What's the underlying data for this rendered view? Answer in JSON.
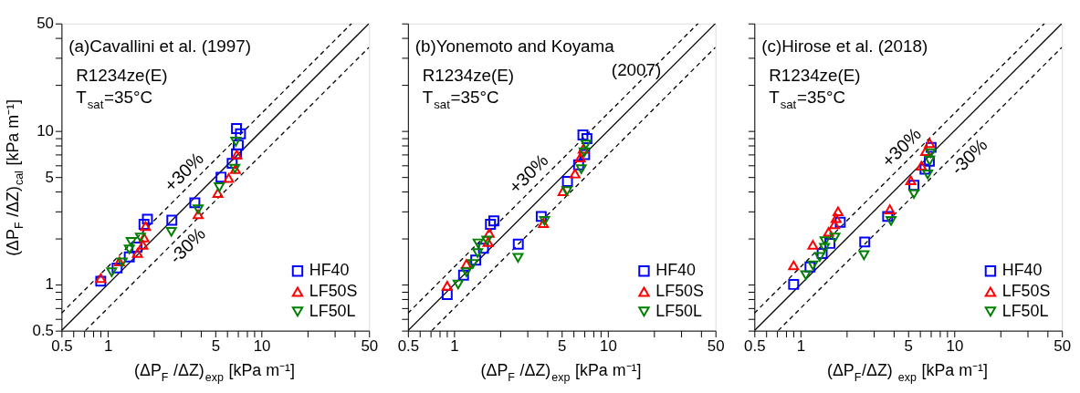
{
  "chart_data": [
    {
      "type": "scatter",
      "title": "(a)Cavallini et al. (1997)",
      "xlabel": "(ΔP$_{F}$ /ΔZ)$_{exp}$ [kPa m⁻¹]",
      "ylabel": "(ΔP$_{F}$ /ΔZ)$_{cal}$ [kPa m⁻¹]",
      "annotations": [
        "R1234ze(E)",
        "T$_{sat}$=35°C",
        {
          "text": "+30%",
          "x": 3.6,
          "y": 4.68
        },
        {
          "text": "-30%",
          "x": 2.9,
          "y": 2.03
        }
      ],
      "xlim": [
        0.5,
        50
      ],
      "ylim": [
        0.5,
        50
      ],
      "xticks": [
        0.5,
        {
          "value": 0.6,
          "label": null
        },
        {
          "value": 0.7,
          "label": null
        },
        {
          "value": 0.8,
          "label": null
        },
        {
          "value": 0.9,
          "label": null
        },
        1,
        {
          "value": 2,
          "label": null
        },
        {
          "value": 3,
          "label": null
        },
        {
          "value": 4,
          "label": null
        },
        5,
        {
          "value": 6,
          "label": null
        },
        {
          "value": 7,
          "label": null
        },
        {
          "value": 8,
          "label": null
        },
        {
          "value": 9,
          "label": null
        },
        10,
        {
          "value": 20,
          "label": null
        },
        {
          "value": 30,
          "label": null
        },
        {
          "value": 40,
          "label": null
        },
        50
      ],
      "yticks": [
        0.5,
        {
          "value": 0.6,
          "label": null
        },
        {
          "value": 0.7,
          "label": null
        },
        {
          "value": 0.8,
          "label": null
        },
        {
          "value": 0.9,
          "label": null
        },
        1,
        {
          "value": 2,
          "label": null
        },
        {
          "value": 3,
          "label": null
        },
        {
          "value": 4,
          "label": null
        },
        5,
        {
          "value": 6,
          "label": null
        },
        {
          "value": 7,
          "label": null
        },
        {
          "value": 8,
          "label": null
        },
        {
          "value": 9,
          "label": null
        },
        10,
        {
          "value": 20,
          "label": null
        },
        {
          "value": 30,
          "label": null
        },
        {
          "value": 40,
          "label": null
        },
        50
      ],
      "log": "xy",
      "grid": false,
      "legend": "bottom right",
      "series": [
        {
          "type": "line",
          "color": "#000000",
          "line_style": "solid",
          "x": [
            0.5,
            50
          ],
          "values": [
            0.5,
            50
          ]
        },
        {
          "type": "line",
          "color": "#000000",
          "line_style": "dashed",
          "x": [
            0.5,
            38.5
          ],
          "values": [
            0.65,
            50
          ]
        },
        {
          "type": "line",
          "color": "#000000",
          "line_style": "dashed",
          "x": [
            0.714,
            50
          ],
          "values": [
            0.5,
            35
          ]
        },
        {
          "name": "HF40",
          "color": "#0000ff",
          "marker": "square",
          "x": [
            0.9,
            1.15,
            1.38,
            1.55,
            1.72,
            1.81,
            2.61,
            3.68,
            5.45,
            6.44,
            6.87,
            7.05,
            6.87,
            7.29
          ],
          "values": [
            1.05,
            1.28,
            1.51,
            1.75,
            2.46,
            2.66,
            2.62,
            3.4,
            4.99,
            6.14,
            7.09,
            8.08,
            10.35,
            9.57
          ]
        },
        {
          "name": "LF50S",
          "color": "#ff0000",
          "marker": "triangle",
          "x": [
            0.9,
            1.19,
            1.56,
            1.69,
            1.72,
            1.76,
            3.87,
            5.2,
            6.11,
            6.76,
            6.9
          ],
          "values": [
            1.1,
            1.41,
            1.6,
            1.81,
            2.02,
            2.4,
            2.86,
            3.94,
            4.93,
            5.63,
            7.0
          ]
        },
        {
          "name": "LF50L",
          "color": "#008000",
          "marker": "triangle-down",
          "x": [
            1.06,
            1.24,
            1.38,
            1.42,
            1.63,
            2.59,
            3.87,
            5.31,
            6.7,
            6.8
          ],
          "values": [
            1.2,
            1.39,
            1.69,
            1.89,
            2.02,
            2.2,
            3.08,
            4.29,
            5.67,
            8.5
          ]
        }
      ]
    },
    {
      "type": "scatter",
      "title": "(b)Yonemoto and Koyama\n(2007)",
      "xlabel": "(ΔP$_{F}$ /ΔZ)$_{exp}$ [kPa m⁻¹]",
      "annotations": [
        "R1234ze(E)",
        "T$_{sat}$=35°C",
        {
          "text": "+30%",
          "x": 3.5,
          "y": 4.55
        }
      ],
      "xlim": [
        0.5,
        50
      ],
      "ylim": [
        0.5,
        50
      ],
      "xticks": [
        0.5,
        {
          "value": 0.6,
          "label": null
        },
        {
          "value": 0.7,
          "label": null
        },
        {
          "value": 0.8,
          "label": null
        },
        {
          "value": 0.9,
          "label": null
        },
        1,
        {
          "value": 2,
          "label": null
        },
        {
          "value": 3,
          "label": null
        },
        {
          "value": 4,
          "label": null
        },
        5,
        {
          "value": 6,
          "label": null
        },
        {
          "value": 7,
          "label": null
        },
        {
          "value": 8,
          "label": null
        },
        {
          "value": 9,
          "label": null
        },
        10,
        {
          "value": 20,
          "label": null
        },
        {
          "value": 30,
          "label": null
        },
        {
          "value": 40,
          "label": null
        },
        50
      ],
      "yticks": [
        0.5,
        {
          "value": 0.6,
          "label": null
        },
        {
          "value": 0.7,
          "label": null
        },
        {
          "value": 0.8,
          "label": null
        },
        {
          "value": 0.9,
          "label": null
        },
        1,
        {
          "value": 2,
          "label": null
        },
        {
          "value": 3,
          "label": null
        },
        {
          "value": 4,
          "label": null
        },
        5,
        {
          "value": 6,
          "label": null
        },
        {
          "value": 7,
          "label": null
        },
        {
          "value": 8,
          "label": null
        },
        {
          "value": 9,
          "label": null
        },
        10,
        {
          "value": 20,
          "label": null
        },
        {
          "value": 30,
          "label": null
        },
        {
          "value": 40,
          "label": null
        },
        50
      ],
      "log": "xy",
      "grid": false,
      "legend": "bottom right",
      "tick_labels": "x",
      "series": [
        {
          "type": "line",
          "color": "#000000",
          "line_style": "solid",
          "x": [
            0.5,
            50
          ],
          "values": [
            0.5,
            50
          ]
        },
        {
          "type": "line",
          "color": "#000000",
          "line_style": "dashed",
          "x": [
            0.5,
            38.5
          ],
          "values": [
            0.65,
            50
          ]
        },
        {
          "type": "line",
          "color": "#000000",
          "line_style": "dashed",
          "x": [
            0.714,
            50
          ],
          "values": [
            0.5,
            35
          ]
        },
        {
          "name": "HF40",
          "color": "#0000ff",
          "marker": "square",
          "x": [
            0.9,
            1.15,
            1.38,
            1.55,
            1.72,
            1.81,
            2.61,
            3.68,
            5.45,
            6.44,
            6.87,
            7.05,
            7.29
          ],
          "values": [
            0.86,
            1.15,
            1.44,
            1.72,
            2.46,
            2.59,
            1.83,
            2.77,
            4.68,
            6.01,
            9.4,
            7.0,
            8.9
          ]
        },
        {
          "name": "LF50S",
          "color": "#ff0000",
          "marker": "triangle",
          "x": [
            0.9,
            1.2,
            1.66,
            1.69,
            3.8,
            5.1,
            6.1,
            6.6,
            6.9
          ],
          "values": [
            0.98,
            1.36,
            1.89,
            2.16,
            2.51,
            4.05,
            5.27,
            6.7,
            7.63
          ]
        },
        {
          "name": "LF50L",
          "color": "#008000",
          "marker": "triangle-down",
          "x": [
            1.06,
            1.2,
            1.32,
            1.42,
            1.43,
            1.63,
            2.6,
            3.87,
            5.4,
            6.7,
            7.0,
            7.2
          ],
          "values": [
            1.0,
            1.2,
            1.36,
            1.6,
            1.85,
            1.93,
            1.49,
            2.59,
            4.05,
            5.63,
            7.24,
            8.15
          ]
        }
      ]
    },
    {
      "type": "scatter",
      "title": "(c)Hirose et al. (2018)",
      "xlabel": "(ΔP$_{F}$/ΔZ) $_{exp}$ [kPa m⁻¹]",
      "annotations": [
        "R1234ze(E)",
        "T$_{sat}$=35°C",
        {
          "text": "+30%",
          "x": 5.2,
          "y": 6.76
        },
        {
          "text": "-30%",
          "x": 11,
          "y": 7.7
        }
      ],
      "xlim": [
        0.5,
        50
      ],
      "ylim": [
        0.5,
        50
      ],
      "xticks": [
        0.5,
        {
          "value": 0.6,
          "label": null
        },
        {
          "value": 0.7,
          "label": null
        },
        {
          "value": 0.8,
          "label": null
        },
        {
          "value": 0.9,
          "label": null
        },
        1,
        {
          "value": 2,
          "label": null
        },
        {
          "value": 3,
          "label": null
        },
        {
          "value": 4,
          "label": null
        },
        5,
        {
          "value": 6,
          "label": null
        },
        {
          "value": 7,
          "label": null
        },
        {
          "value": 8,
          "label": null
        },
        {
          "value": 9,
          "label": null
        },
        10,
        {
          "value": 20,
          "label": null
        },
        {
          "value": 30,
          "label": null
        },
        {
          "value": 40,
          "label": null
        },
        50
      ],
      "yticks": [
        0.5,
        {
          "value": 0.6,
          "label": null
        },
        {
          "value": 0.7,
          "label": null
        },
        {
          "value": 0.8,
          "label": null
        },
        {
          "value": 0.9,
          "label": null
        },
        1,
        {
          "value": 2,
          "label": null
        },
        {
          "value": 3,
          "label": null
        },
        {
          "value": 4,
          "label": null
        },
        5,
        {
          "value": 6,
          "label": null
        },
        {
          "value": 7,
          "label": null
        },
        {
          "value": 8,
          "label": null
        },
        {
          "value": 9,
          "label": null
        },
        10,
        {
          "value": 20,
          "label": null
        },
        {
          "value": 30,
          "label": null
        },
        {
          "value": 40,
          "label": null
        },
        50
      ],
      "log": "xy",
      "grid": false,
      "legend": "bottom right",
      "tick_labels": "x",
      "series": [
        {
          "type": "line",
          "color": "#000000",
          "line_style": "solid",
          "x": [
            0.5,
            50
          ],
          "values": [
            0.5,
            50
          ]
        },
        {
          "type": "line",
          "color": "#000000",
          "line_style": "dashed",
          "x": [
            0.5,
            38.5
          ],
          "values": [
            0.65,
            50
          ]
        },
        {
          "type": "line",
          "color": "#000000",
          "line_style": "dashed",
          "x": [
            0.714,
            50
          ],
          "values": [
            0.5,
            35
          ]
        },
        {
          "name": "HF40",
          "color": "#0000ff",
          "marker": "square",
          "x": [
            0.9,
            1.15,
            1.38,
            1.55,
            1.81,
            2.61,
            3.68,
            5.45,
            6.44,
            6.87,
            7.05
          ],
          "values": [
            1.0,
            1.3,
            1.59,
            1.85,
            2.54,
            1.89,
            2.77,
            4.42,
            5.63,
            6.35,
            7.8
          ]
        },
        {
          "name": "LF50S",
          "color": "#ff0000",
          "marker": "triangle",
          "x": [
            0.9,
            1.2,
            1.52,
            1.66,
            1.7,
            1.75,
            3.8,
            5.2,
            6.1,
            6.5,
            6.9
          ],
          "values": [
            1.33,
            1.81,
            2.2,
            2.46,
            2.7,
            2.99,
            3.08,
            4.76,
            5.93,
            7.37,
            8.33
          ]
        },
        {
          "name": "LF50L",
          "color": "#008000",
          "marker": "triangle-down",
          "x": [
            1.08,
            1.2,
            1.33,
            1.43,
            1.44,
            1.67,
            2.58,
            3.87,
            5.45,
            6.7,
            6.9,
            7.0
          ],
          "values": [
            1.15,
            1.33,
            1.51,
            1.73,
            1.91,
            2.02,
            1.55,
            2.59,
            3.88,
            5.2,
            6.4,
            7.15
          ]
        }
      ]
    }
  ]
}
